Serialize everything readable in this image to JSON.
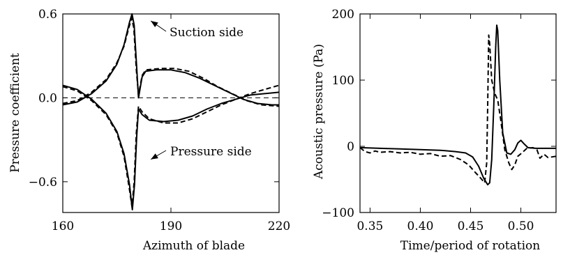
{
  "chart_data": [
    {
      "type": "line",
      "xlabel": "Azimuth of blade",
      "ylabel": "Pressure coefficient",
      "xlim": [
        160,
        220
      ],
      "ylim": [
        -0.82,
        0.6
      ],
      "xticks": [
        160,
        190,
        220
      ],
      "yticks": [
        0.6,
        0.0,
        -0.6
      ],
      "xtick_labels": [
        "160",
        "190",
        "220"
      ],
      "ytick_labels": [
        "0.6",
        "0.0",
        "−0.6"
      ],
      "zero_line": true,
      "annotations": [
        {
          "text": "Suction side",
          "point_to": [
            179,
            0.55
          ]
        },
        {
          "text": "Pressure side",
          "point_to": [
            179,
            -0.44
          ]
        }
      ],
      "series": [
        {
          "style": "solid",
          "points": [
            [
              160,
              -0.05
            ],
            [
              164,
              -0.03
            ],
            [
              168,
              0.03
            ],
            [
              172,
              0.12
            ],
            [
              175,
              0.24
            ],
            [
              177,
              0.38
            ],
            [
              178.5,
              0.54
            ],
            [
              179.2,
              0.6
            ],
            [
              179.8,
              0.52
            ],
            [
              180.5,
              0.22
            ],
            [
              181,
              0.0
            ],
            [
              182,
              0.15
            ],
            [
              183,
              0.19
            ],
            [
              186,
              0.2
            ],
            [
              190,
              0.2
            ],
            [
              194,
              0.18
            ],
            [
              198,
              0.14
            ],
            [
              202,
              0.09
            ],
            [
              206,
              0.04
            ],
            [
              210,
              -0.01
            ],
            [
              214,
              -0.04
            ],
            [
              218,
              -0.05
            ],
            [
              220,
              -0.05
            ]
          ]
        },
        {
          "style": "solid",
          "points": [
            [
              160,
              0.09
            ],
            [
              164,
              0.06
            ],
            [
              168,
              -0.01
            ],
            [
              172,
              -0.11
            ],
            [
              175,
              -0.24
            ],
            [
              177,
              -0.4
            ],
            [
              178.5,
              -0.62
            ],
            [
              179.3,
              -0.8
            ],
            [
              179.9,
              -0.62
            ],
            [
              180.5,
              -0.28
            ],
            [
              181,
              -0.08
            ],
            [
              182,
              -0.12
            ],
            [
              184,
              -0.16
            ],
            [
              188,
              -0.17
            ],
            [
              192,
              -0.16
            ],
            [
              196,
              -0.13
            ],
            [
              200,
              -0.08
            ],
            [
              204,
              -0.04
            ],
            [
              208,
              -0.01
            ],
            [
              212,
              0.02
            ],
            [
              216,
              0.03
            ],
            [
              220,
              0.04
            ]
          ]
        },
        {
          "style": "dashed",
          "points": [
            [
              160,
              -0.04
            ],
            [
              164,
              -0.02
            ],
            [
              168,
              0.04
            ],
            [
              172,
              0.13
            ],
            [
              175,
              0.25
            ],
            [
              177,
              0.37
            ],
            [
              178.3,
              0.5
            ],
            [
              179.1,
              0.57
            ],
            [
              179.7,
              0.5
            ],
            [
              180.4,
              0.2
            ],
            [
              181,
              0.02
            ],
            [
              182,
              0.16
            ],
            [
              183,
              0.2
            ],
            [
              187,
              0.21
            ],
            [
              191,
              0.21
            ],
            [
              195,
              0.19
            ],
            [
              199,
              0.14
            ],
            [
              203,
              0.08
            ],
            [
              207,
              0.03
            ],
            [
              211,
              -0.02
            ],
            [
              215,
              -0.05
            ],
            [
              220,
              -0.06
            ]
          ]
        },
        {
          "style": "dashed",
          "points": [
            [
              160,
              0.08
            ],
            [
              164,
              0.05
            ],
            [
              168,
              -0.02
            ],
            [
              172,
              -0.12
            ],
            [
              175,
              -0.25
            ],
            [
              177,
              -0.42
            ],
            [
              178.4,
              -0.64
            ],
            [
              179.2,
              -0.78
            ],
            [
              179.8,
              -0.6
            ],
            [
              180.4,
              -0.25
            ],
            [
              181,
              -0.06
            ],
            [
              182,
              -0.1
            ],
            [
              184,
              -0.15
            ],
            [
              188,
              -0.18
            ],
            [
              192,
              -0.18
            ],
            [
              196,
              -0.15
            ],
            [
              200,
              -0.1
            ],
            [
              204,
              -0.05
            ],
            [
              208,
              -0.01
            ],
            [
              212,
              0.03
            ],
            [
              216,
              0.06
            ],
            [
              220,
              0.09
            ]
          ]
        }
      ]
    },
    {
      "type": "line",
      "xlabel": "Time/period of rotation",
      "ylabel": "Acoustic pressure (Pa)",
      "xlim": [
        0.34,
        0.535
      ],
      "ylim": [
        -100,
        200
      ],
      "xticks": [
        0.35,
        0.4,
        0.45,
        0.5
      ],
      "yticks": [
        200,
        100,
        0,
        -100
      ],
      "xtick_labels": [
        "0.35",
        "0.40",
        "0.45",
        "0.50"
      ],
      "ytick_labels": [
        "200",
        "100",
        "0",
        "−100"
      ],
      "series": [
        {
          "style": "solid",
          "points": [
            [
              0.34,
              -2
            ],
            [
              0.36,
              -3
            ],
            [
              0.38,
              -4
            ],
            [
              0.4,
              -5
            ],
            [
              0.42,
              -6
            ],
            [
              0.435,
              -8
            ],
            [
              0.445,
              -10
            ],
            [
              0.452,
              -16
            ],
            [
              0.458,
              -30
            ],
            [
              0.463,
              -48
            ],
            [
              0.467,
              -58
            ],
            [
              0.469,
              -55
            ],
            [
              0.471,
              -20
            ],
            [
              0.473,
              60
            ],
            [
              0.475,
              150
            ],
            [
              0.476,
              183
            ],
            [
              0.477,
              175
            ],
            [
              0.479,
              100
            ],
            [
              0.482,
              20
            ],
            [
              0.486,
              -10
            ],
            [
              0.49,
              -12
            ],
            [
              0.494,
              -5
            ],
            [
              0.497,
              5
            ],
            [
              0.5,
              9
            ],
            [
              0.503,
              4
            ],
            [
              0.507,
              -2
            ],
            [
              0.515,
              -3
            ],
            [
              0.535,
              -3
            ]
          ]
        },
        {
          "style": "dashed",
          "points": [
            [
              0.34,
              -2
            ],
            [
              0.345,
              -8
            ],
            [
              0.35,
              -10
            ],
            [
              0.355,
              -7
            ],
            [
              0.36,
              -9
            ],
            [
              0.37,
              -8
            ],
            [
              0.38,
              -10
            ],
            [
              0.39,
              -9
            ],
            [
              0.4,
              -12
            ],
            [
              0.41,
              -11
            ],
            [
              0.42,
              -15
            ],
            [
              0.43,
              -14
            ],
            [
              0.44,
              -20
            ],
            [
              0.448,
              -28
            ],
            [
              0.455,
              -40
            ],
            [
              0.46,
              -48
            ],
            [
              0.464,
              -55
            ],
            [
              0.466,
              -25
            ],
            [
              0.467,
              60
            ],
            [
              0.468,
              168
            ],
            [
              0.469,
              155
            ],
            [
              0.471,
              100
            ],
            [
              0.474,
              80
            ],
            [
              0.477,
              70
            ],
            [
              0.48,
              40
            ],
            [
              0.484,
              -5
            ],
            [
              0.488,
              -25
            ],
            [
              0.491,
              -35
            ],
            [
              0.494,
              -28
            ],
            [
              0.497,
              -15
            ],
            [
              0.501,
              -10
            ],
            [
              0.506,
              -3
            ],
            [
              0.512,
              -2
            ],
            [
              0.516,
              -5
            ],
            [
              0.519,
              -18
            ],
            [
              0.523,
              -12
            ],
            [
              0.527,
              -17
            ],
            [
              0.535,
              -15
            ]
          ]
        }
      ]
    }
  ]
}
